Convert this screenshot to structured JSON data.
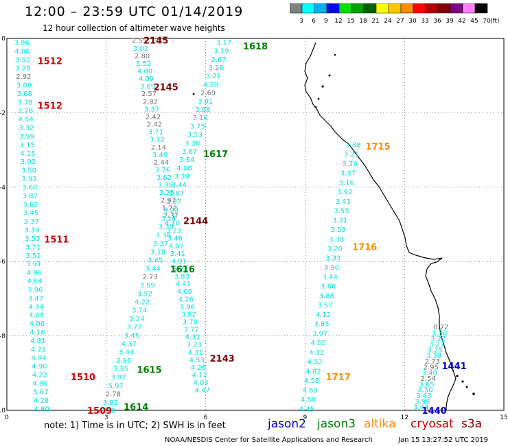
{
  "title": "12:00 – 23:59 UTC 01/14/2019",
  "subtitle": "12 hour collection of altimeter wave heights",
  "colorbar": {
    "unit": "(ft)",
    "ticks": [
      "3",
      "6",
      "9",
      "12",
      "15",
      "18",
      "21",
      "24",
      "27",
      "30",
      "33",
      "36",
      "39",
      "42",
      "45",
      "70"
    ],
    "colors": [
      "#808080",
      "#00ffff",
      "#00b0ff",
      "#0000ff",
      "#00e000",
      "#00a000",
      "#006000",
      "#ffff00",
      "#ffc800",
      "#ff8c00",
      "#ff0000",
      "#b00000",
      "#800000",
      "#800080",
      "#ff80ff",
      "#000000"
    ]
  },
  "axes": {
    "x_ticks": [
      "0",
      "3",
      "6",
      "9",
      "12",
      "15"
    ],
    "y_ticks": [
      "0",
      "-2",
      "-4",
      "-6",
      "-8",
      "-10"
    ],
    "xlim": [
      0,
      15
    ],
    "ylim": [
      -10,
      0
    ]
  },
  "colors": {
    "jason2": "#0000cc",
    "jason3": "#008000",
    "altika": "#ff8c00",
    "cryosat": "#cc0000",
    "s3a": "#800000",
    "low": "#00e0e0",
    "gray": "#707070",
    "coast": "#000000"
  },
  "pass_labels": [
    {
      "text": "1512",
      "sat": "cryosat",
      "x": 1.3,
      "y": -0.6
    },
    {
      "text": "1512",
      "sat": "cryosat",
      "x": 1.3,
      "y": -1.8
    },
    {
      "text": "1511",
      "sat": "cryosat",
      "x": 1.5,
      "y": -5.4
    },
    {
      "text": "1510",
      "sat": "cryosat",
      "x": 2.3,
      "y": -9.1
    },
    {
      "text": "1509",
      "sat": "cryosat",
      "x": 2.8,
      "y": -10.0
    },
    {
      "text": "2145",
      "sat": "s3a",
      "x": 4.5,
      "y": -0.05
    },
    {
      "text": "2145",
      "sat": "s3a",
      "x": 4.8,
      "y": -1.3
    },
    {
      "text": "2144",
      "sat": "s3a",
      "x": 5.7,
      "y": -4.9
    },
    {
      "text": "2143",
      "sat": "s3a",
      "x": 6.5,
      "y": -8.6
    },
    {
      "text": "1618",
      "sat": "jason3",
      "x": 7.5,
      "y": -0.2
    },
    {
      "text": "1617",
      "sat": "jason3",
      "x": 6.3,
      "y": -3.1
    },
    {
      "text": "1616",
      "sat": "jason3",
      "x": 5.3,
      "y": -6.2
    },
    {
      "text": "1615",
      "sat": "jason3",
      "x": 4.3,
      "y": -8.9
    },
    {
      "text": "1614",
      "sat": "jason3",
      "x": 3.9,
      "y": -9.9
    },
    {
      "text": "1715",
      "sat": "altika",
      "x": 11.2,
      "y": -2.9
    },
    {
      "text": "1716",
      "sat": "altika",
      "x": 10.8,
      "y": -5.6
    },
    {
      "text": "1717",
      "sat": "altika",
      "x": 10.0,
      "y": -9.1
    },
    {
      "text": "1441",
      "sat": "jason2",
      "x": 13.5,
      "y": -8.8
    },
    {
      "text": "1440",
      "sat": "jason2",
      "x": 12.9,
      "y": -10.0
    }
  ],
  "tracks": [
    {
      "name": "cryosat-1510-1512",
      "x0": 0.45,
      "y0": -0.1,
      "x1": 1.05,
      "y1": -9.95,
      "values": [
        "3.96",
        "4.00",
        "3.92",
        "3.25",
        "2.92",
        "3.09",
        "3.68",
        "3.78",
        "3.26",
        "4.54",
        "3.32",
        "3.99",
        "3.15",
        "4.15",
        "3.02",
        "3.50",
        "3.93",
        "3.60",
        "3.87",
        "3.62",
        "3.45",
        "3.37",
        "3.34",
        "3.53",
        "3.71",
        "3.51",
        "3.91",
        "4.86",
        "4.84",
        "3.96",
        "3.47",
        "4.34",
        "4.08",
        "4.06",
        "4.16",
        "4.81",
        "4.21",
        "4.94",
        "4.90",
        "4.22",
        "4.90",
        "5.07",
        "4.28",
        "4.80"
      ]
    },
    {
      "name": "s3a-2143-2145",
      "x0": 4.0,
      "y0": -0.05,
      "x1": 5.9,
      "y1": -9.45,
      "values": [
        "2.55",
        "3.02",
        "2.80",
        "3.52",
        "4.00",
        "4.09",
        "3.89",
        "2.57",
        "2.82",
        "3.37",
        "2.42",
        "2.42",
        "3.71",
        "3.12",
        "2.14",
        "3.40",
        "2.44",
        "3.76",
        "3.62",
        "3.39",
        "3.25",
        "2.97",
        "1.72",
        "2.37",
        "4.10",
        "3.23",
        "3.46",
        "4.07",
        "3.41",
        "4.01",
        "3.23",
        "3.83",
        "4.41",
        "4.08",
        "4.26",
        "3.96",
        "3.82",
        "3.70",
        "3.72",
        "4.31",
        "3.23",
        "4.31",
        "4.53",
        "4.26",
        "4.12",
        "4.04",
        "4.47"
      ]
    },
    {
      "name": "jason3-1614-1618",
      "x0": 6.55,
      "y0": -0.1,
      "x1": 3.05,
      "y1": -10.0,
      "values": [
        "3.17",
        "3.19",
        "3.67",
        "3.26",
        "3.21",
        "4.20",
        "2.69",
        "3.01",
        "3.88",
        "3.16",
        "3.75",
        "3.53",
        "3.30",
        "3.67",
        "3.64",
        "4.08",
        "3.39",
        "3.44",
        "3.87",
        "3.87",
        "3.23",
        "3.14",
        "3.30",
        "3.36",
        "3.37",
        "3.18",
        "3.45",
        "3.44",
        "2.73",
        "3.99",
        "3.52",
        "4.22",
        "3.74",
        "3.24",
        "3.77",
        "3.45",
        "4.37",
        "3.44",
        "3.96",
        "3.55",
        "3.92",
        "5.97",
        "2.78",
        "3.82",
        "5.80"
      ]
    },
    {
      "name": "altika-1715-1717",
      "x0": 10.45,
      "y0": -2.85,
      "x1": 9.05,
      "y1": -9.95,
      "values": [
        "3.38",
        "3.21",
        "3.29",
        "3.37",
        "3.16",
        "3.92",
        "3.43",
        "3.55",
        "3.31",
        "3.59",
        "3.38",
        "3.20",
        "3.33",
        "3.90",
        "3.44",
        "3.66",
        "3.88",
        "3.57",
        "4.12",
        "3.85",
        "3.97",
        "4.55",
        "4.32",
        "4.52",
        "4.82",
        "4.58",
        "4.69",
        "4.58",
        "4.45"
      ]
    },
    {
      "name": "jason2-1440-1441",
      "x0": 13.1,
      "y0": -7.75,
      "x1": 12.5,
      "y1": -9.9,
      "values": [
        "0.72",
        "3.30",
        "3.22",
        "3.27",
        "3.25",
        "3.38",
        "2.73",
        "2.95",
        "3.40",
        "2.54",
        "3.65",
        "3.50",
        "3.43",
        "3.98",
        "3.44"
      ]
    }
  ],
  "legend": [
    {
      "text": "jason2",
      "sat": "jason2"
    },
    {
      "text": "jason3",
      "sat": "jason3"
    },
    {
      "text": "altika",
      "sat": "altika"
    },
    {
      "text": "cryosat",
      "sat": "cryosat"
    },
    {
      "text": "s3a",
      "sat": "s3a"
    }
  ],
  "note": "note:  1) Time is in UTC;  2) SWH is in feet",
  "credit": "NOAA/NESDIS Center for Satellite Applications and Research",
  "timestamp": "Jan 15 13:27:52 UTC 2019"
}
